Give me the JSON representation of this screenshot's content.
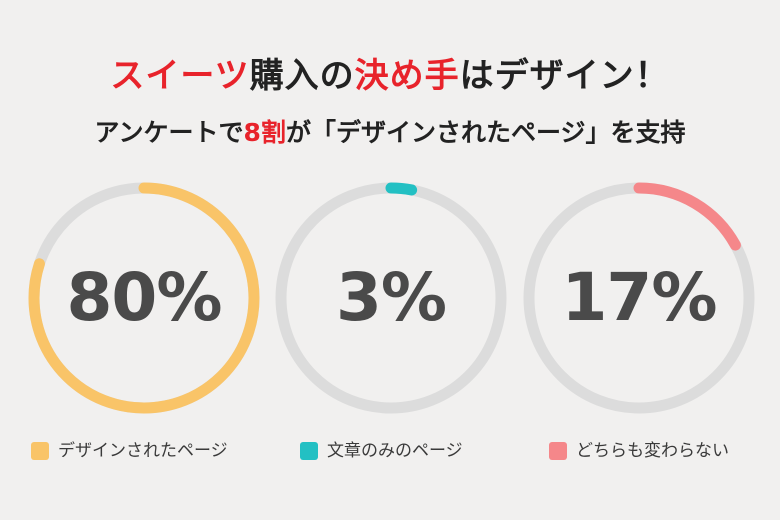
{
  "header": {
    "title_parts": [
      "スイーツ",
      "購入の",
      "決め手",
      "はデザイン！"
    ],
    "subtitle_parts": [
      "アンケートで",
      "8割",
      "が「デザインされたページ」を支持"
    ]
  },
  "colors": {
    "highlight": "#e8232b",
    "track": "#dcdcdc",
    "percent_text": "#4a4a4a"
  },
  "chart_data": {
    "type": "pie",
    "title": "スイーツ購入の決め手はデザイン！",
    "subtitle": "アンケートで8割が「デザインされたページ」を支持",
    "unit": "%",
    "legend_position": "bottom",
    "slices": [
      {
        "label": "デザインされたページ",
        "value": 80,
        "display": "80%",
        "color": "#f9c468"
      },
      {
        "label": "文章のみのページ",
        "value": 3,
        "display": "3%",
        "color": "#23c0c3"
      },
      {
        "label": "どちらも変わらない",
        "value": 17,
        "display": "17%",
        "color": "#f5878a"
      }
    ]
  }
}
